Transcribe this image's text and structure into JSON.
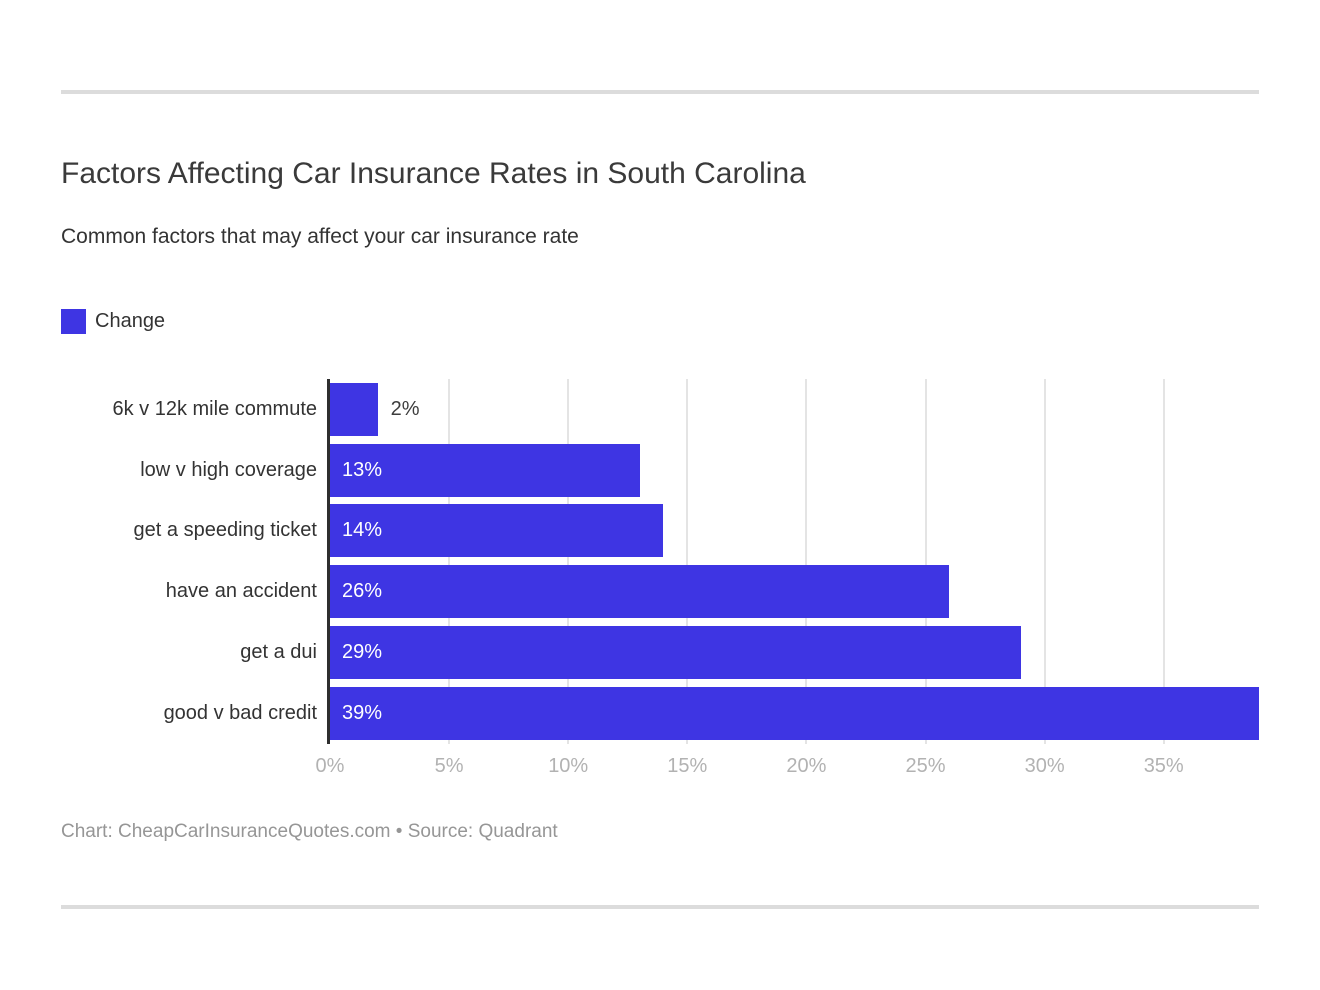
{
  "header": {
    "title": "Factors Affecting Car Insurance Rates in South Carolina",
    "subtitle": "Common factors that may affect your car insurance rate"
  },
  "legend": {
    "label": "Change",
    "color": "#3e35e3"
  },
  "chart_data": {
    "type": "bar",
    "orientation": "horizontal",
    "title": "Factors Affecting Car Insurance Rates in South Carolina",
    "subtitle": "Common factors that may affect your car insurance rate",
    "series_name": "Change",
    "categories": [
      "6k v 12k mile commute",
      "low v high coverage",
      "get a speeding ticket",
      "have an accident",
      "get a dui",
      "good v bad credit"
    ],
    "values": [
      2,
      13,
      14,
      26,
      29,
      39
    ],
    "value_labels": [
      "2%",
      "13%",
      "14%",
      "26%",
      "29%",
      "39%"
    ],
    "xlabel": "",
    "ylabel": "",
    "xlim": [
      0,
      39
    ],
    "x_ticks": [
      "0%",
      "5%",
      "10%",
      "15%",
      "20%",
      "25%",
      "30%",
      "35%"
    ],
    "x_tick_values": [
      0,
      5,
      10,
      15,
      20,
      25,
      30,
      35
    ],
    "grid": "vertical",
    "legend_position": "top-left",
    "bar_color": "#3e35e3",
    "inside_label_color": "#ffffff",
    "outside_label_color": "#3d3d3d"
  },
  "footer": {
    "credit": "Chart: CheapCarInsuranceQuotes.com • Source: Quadrant"
  }
}
